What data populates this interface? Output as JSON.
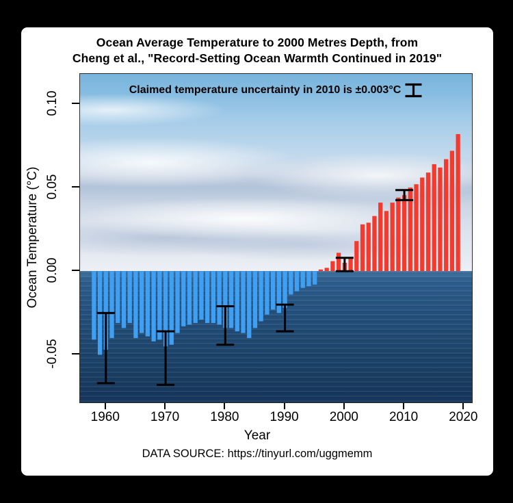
{
  "window": {
    "background": "#000000",
    "card_background": "#ffffff"
  },
  "title": {
    "line1": "Ocean Average Temperature to 2000 Metres Depth, from",
    "line2": "Cheng et al., \"Record-Setting Ocean Warmth Continued in 2019\""
  },
  "annotation": {
    "text": "Claimed temperature uncertainty in 2010 is ±0.003°C",
    "icon": "error-bar-icon",
    "color": "#000000"
  },
  "axes": {
    "y_label": "Ocean Temperature (°C)",
    "x_label": "Year",
    "y_ticks": [
      {
        "label": "0.10",
        "value": 0.1
      },
      {
        "label": "0.05",
        "value": 0.05
      },
      {
        "label": "0.00",
        "value": 0.0
      },
      {
        "label": "-0.05",
        "value": -0.05
      }
    ],
    "x_ticks": [
      {
        "label": "1960",
        "value": 1960
      },
      {
        "label": "1970",
        "value": 1970
      },
      {
        "label": "1980",
        "value": 1980
      },
      {
        "label": "1990",
        "value": 1990
      },
      {
        "label": "2000",
        "value": 2000
      },
      {
        "label": "2010",
        "value": 2010
      },
      {
        "label": "2020",
        "value": 2020
      }
    ]
  },
  "source_line": "DATA SOURCE: https://tinyurl.com/uggmemm",
  "chart_data": {
    "type": "bar",
    "title": "Ocean Average Temperature to 2000 Metres Depth",
    "xlabel": "Year",
    "ylabel": "Ocean Temperature (°C)",
    "ylim": [
      -0.0785,
      0.118
    ],
    "x_start_year": 1958,
    "x": [
      1958,
      1959,
      1960,
      1961,
      1962,
      1963,
      1964,
      1965,
      1966,
      1967,
      1968,
      1969,
      1970,
      1971,
      1972,
      1973,
      1974,
      1975,
      1976,
      1977,
      1978,
      1979,
      1980,
      1981,
      1982,
      1983,
      1984,
      1985,
      1986,
      1987,
      1988,
      1989,
      1990,
      1991,
      1992,
      1993,
      1994,
      1995,
      1996,
      1997,
      1998,
      1999,
      2000,
      2001,
      2002,
      2003,
      2004,
      2005,
      2006,
      2007,
      2008,
      2009,
      2010,
      2011,
      2012,
      2013,
      2014,
      2015,
      2016,
      2017,
      2018,
      2019
    ],
    "values": [
      -0.041,
      -0.05,
      -0.047,
      -0.04,
      -0.031,
      -0.034,
      -0.031,
      -0.04,
      -0.037,
      -0.039,
      -0.042,
      -0.041,
      -0.045,
      -0.044,
      -0.037,
      -0.033,
      -0.032,
      -0.031,
      -0.029,
      -0.031,
      -0.031,
      -0.032,
      -0.034,
      -0.034,
      -0.036,
      -0.037,
      -0.04,
      -0.034,
      -0.03,
      -0.026,
      -0.023,
      -0.025,
      -0.022,
      -0.014,
      -0.012,
      -0.01,
      -0.009,
      -0.008,
      0.001,
      0.002,
      0.006,
      0.011,
      0.005,
      0.008,
      0.018,
      0.028,
      0.029,
      0.033,
      0.041,
      0.036,
      0.041,
      0.044,
      0.0455,
      0.05,
      0.052,
      0.056,
      0.059,
      0.064,
      0.062,
      0.067,
      0.072,
      0.082
    ],
    "positive_color": "#f23b2e",
    "negative_color": "#3f9ff2",
    "error_bar_color": "#000000",
    "error_bars": [
      {
        "x": 1960,
        "low": -0.067,
        "high": -0.025
      },
      {
        "x": 1970,
        "low": -0.068,
        "high": -0.036
      },
      {
        "x": 1980,
        "low": -0.044,
        "high": -0.021
      },
      {
        "x": 1990,
        "low": -0.036,
        "high": -0.02
      },
      {
        "x": 2000,
        "low": 0.0,
        "high": 0.008
      },
      {
        "x": 2010,
        "low": 0.0425,
        "high": 0.0485
      }
    ],
    "legend": "none",
    "grid": false,
    "background": "ocean-photo"
  }
}
